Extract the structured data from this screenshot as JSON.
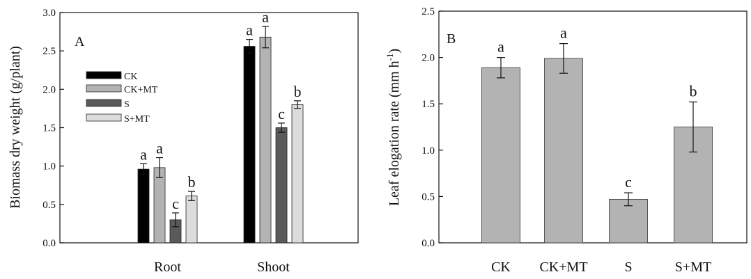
{
  "chart_data": [
    {
      "type": "bar",
      "panel_label": "A",
      "ylabel": "Biomass dry weight (g/plant)",
      "ylim": [
        0,
        3.0
      ],
      "yticks": [
        "0.0",
        "0.5",
        "1.0",
        "1.5",
        "2.0",
        "2.5",
        "3.0"
      ],
      "categories": [
        "Root",
        "Shoot"
      ],
      "legend_position": "left",
      "series": [
        {
          "name": "CK",
          "color": "#000000",
          "values": [
            0.96,
            2.56
          ],
          "errors": [
            0.07,
            0.09
          ],
          "letters": [
            "a",
            "a"
          ]
        },
        {
          "name": "CK+MT",
          "color": "#b3b3b3",
          "values": [
            0.98,
            2.68
          ],
          "errors": [
            0.13,
            0.14
          ],
          "letters": [
            "a",
            "a"
          ]
        },
        {
          "name": "S",
          "color": "#5a5a5a",
          "values": [
            0.3,
            1.5
          ],
          "errors": [
            0.09,
            0.06
          ],
          "letters": [
            "c",
            "c"
          ]
        },
        {
          "name": "S+MT",
          "color": "#dcdcdc",
          "values": [
            0.61,
            1.8
          ],
          "errors": [
            0.06,
            0.05
          ],
          "letters": [
            "b",
            "b"
          ]
        }
      ]
    },
    {
      "type": "bar",
      "panel_label": "B",
      "ylabel": "Leaf elogation rate (mm h",
      "ylabel_sup": "-1",
      "ylabel_close": ")",
      "ylim": [
        0,
        2.5
      ],
      "yticks": [
        "0.0",
        "0.5",
        "1.0",
        "1.5",
        "2.0",
        "2.5"
      ],
      "categories": [
        "CK",
        "CK+MT",
        "S",
        "S+MT"
      ],
      "color": "#b3b3b3",
      "values": [
        1.89,
        1.99,
        0.47,
        1.25
      ],
      "errors": [
        0.11,
        0.16,
        0.07,
        0.27
      ],
      "letters": [
        "a",
        "a",
        "c",
        "b"
      ]
    }
  ]
}
